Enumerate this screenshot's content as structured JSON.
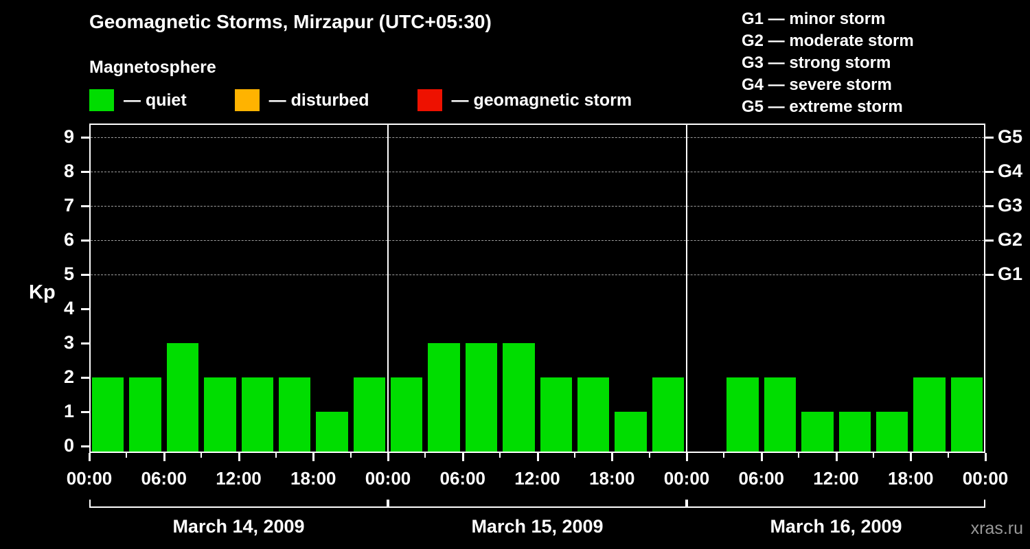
{
  "title": "Geomagnetic Storms, Mirzapur (UTC+05:30)",
  "subtitle": "Magnetosphere",
  "legend": {
    "items": [
      {
        "label": "— quiet",
        "color": "#00dd00"
      },
      {
        "label": "— disturbed",
        "color": "#ffb300"
      },
      {
        "label": "— geomagnetic storm",
        "color": "#ee1100"
      }
    ]
  },
  "storm_scale_legend": [
    {
      "label": "G1 — minor storm"
    },
    {
      "label": "G2 — moderate storm"
    },
    {
      "label": "G3 — strong storm"
    },
    {
      "label": "G4 — severe storm"
    },
    {
      "label": "G5 — extreme storm"
    }
  ],
  "watermark": "xras.ru",
  "chart_data": {
    "type": "bar",
    "title": "Geomagnetic Storms, Mirzapur (UTC+05:30)",
    "ylabel": "Kp",
    "ylim": [
      0,
      9.5
    ],
    "y_ticks": [
      0,
      1,
      2,
      3,
      4,
      5,
      6,
      7,
      8,
      9
    ],
    "right_axis": [
      {
        "label": "G5",
        "kp": 9
      },
      {
        "label": "G4",
        "kp": 8
      },
      {
        "label": "G3",
        "kp": 7
      },
      {
        "label": "G2",
        "kp": 6
      },
      {
        "label": "G1",
        "kp": 5
      }
    ],
    "grid": "dashed horizontal lines at Kp 5 through 9",
    "legend_position": "top",
    "bar_color": "#00dd00",
    "interval_hours": 3,
    "x_tick_labels": [
      "00:00",
      "06:00",
      "12:00",
      "18:00",
      "00:00",
      "06:00",
      "12:00",
      "18:00",
      "00:00",
      "06:00",
      "12:00",
      "18:00",
      "00:00"
    ],
    "days": [
      {
        "date": "March 14, 2009",
        "kp_values": [
          2,
          2,
          3,
          2,
          2,
          2,
          1,
          2
        ]
      },
      {
        "date": "March 15, 2009",
        "kp_values": [
          2,
          3,
          3,
          3,
          2,
          2,
          1,
          2
        ]
      },
      {
        "date": "March 16, 2009",
        "kp_values": [
          0,
          2,
          2,
          1,
          1,
          1,
          2,
          2
        ]
      }
    ]
  }
}
